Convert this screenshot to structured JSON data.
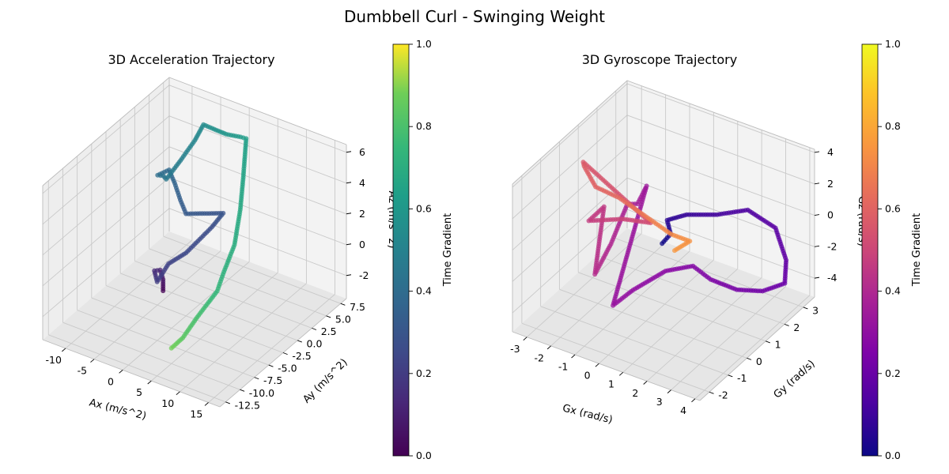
{
  "figure": {
    "title": "Dumbbell Curl - Swinging Weight"
  },
  "chart_data": [
    {
      "type": "scatter",
      "subtype": "3d-trajectory",
      "title": "3D Acceleration Trajectory",
      "xlabel": "Ax (m/s^2)",
      "ylabel": "Ay (m/s^2)",
      "zlabel": "Az (m/s^2)",
      "xlim": [
        -14,
        17
      ],
      "ylim": [
        -13.5,
        8.5
      ],
      "zlim": [
        -3.5,
        6.5
      ],
      "xticks": [
        -10,
        -5,
        0,
        5,
        10,
        15
      ],
      "yticks": [
        -12.5,
        -10.0,
        -7.5,
        -5.0,
        -2.5,
        0.0,
        2.5,
        5.0,
        7.5
      ],
      "zticks": [
        -2,
        0,
        2,
        4,
        6
      ],
      "colormap": "viridis",
      "colorbar": {
        "label": "Time Gradient",
        "ticks": [
          0.0,
          0.2,
          0.4,
          0.6,
          0.8,
          1.0
        ]
      },
      "points": [
        [
          -3.5,
          -3.0,
          -2.2,
          0.0
        ],
        [
          -2.5,
          -4.0,
          -1.0,
          0.06
        ],
        [
          -2.0,
          -5.0,
          0.0,
          0.1
        ],
        [
          -1.5,
          -6.5,
          0.5,
          0.12
        ],
        [
          1.5,
          -9.0,
          1.0,
          0.18
        ],
        [
          2.5,
          -8.0,
          2.0,
          0.2
        ],
        [
          2.0,
          -4.5,
          1.5,
          0.22
        ],
        [
          3.0,
          -1.0,
          2.2,
          0.24
        ],
        [
          3.5,
          0.5,
          2.7,
          0.26
        ],
        [
          -0.5,
          -2.0,
          2.9,
          0.28
        ],
        [
          -2.5,
          -1.0,
          3.2,
          0.3
        ],
        [
          -6.0,
          1.5,
          3.0,
          0.32
        ],
        [
          -9.0,
          3.5,
          2.8,
          0.34
        ],
        [
          -10.5,
          3.0,
          2.4,
          0.36
        ],
        [
          -11.0,
          4.5,
          1.8,
          0.38
        ],
        [
          -11.5,
          5.5,
          1.2,
          0.4
        ],
        [
          -8.5,
          5.0,
          3.0,
          0.43
        ],
        [
          -7.0,
          6.0,
          4.2,
          0.46
        ],
        [
          -6.0,
          6.5,
          5.2,
          0.48
        ],
        [
          -4.0,
          6.0,
          5.4,
          0.5
        ],
        [
          -1.0,
          5.5,
          5.6,
          0.52
        ],
        [
          2.0,
          5.0,
          6.0,
          0.54
        ],
        [
          4.0,
          4.0,
          6.5,
          0.56
        ],
        [
          7.0,
          0.5,
          5.5,
          0.58
        ],
        [
          9.0,
          -2.0,
          4.5,
          0.6
        ],
        [
          10.0,
          -4.0,
          3.0,
          0.62
        ],
        [
          9.5,
          -5.5,
          1.5,
          0.64
        ],
        [
          9.0,
          -6.0,
          0.5,
          0.66
        ],
        [
          7.0,
          -7.5,
          -1.0,
          0.7
        ],
        [
          6.0,
          -9.0,
          -2.0,
          0.74
        ],
        [
          5.0,
          -10.0,
          -2.5,
          0.78
        ]
      ]
    },
    {
      "type": "scatter",
      "subtype": "3d-trajectory",
      "title": "3D Gyroscope Trajectory",
      "xlabel": "Gx (rad/s)",
      "ylabel": "Gy (rad/s)",
      "zlabel": "Gz (rad/s)",
      "xlim": [
        -3.6,
        4.2
      ],
      "ylim": [
        -2.5,
        3.6
      ],
      "zlim": [
        -5.2,
        4.2
      ],
      "xticks": [
        -3,
        -2,
        -1,
        0,
        1,
        2,
        3,
        4
      ],
      "yticks": [
        -2,
        -1,
        0,
        1,
        2,
        3
      ],
      "zticks": [
        -4,
        -2,
        0,
        2,
        4
      ],
      "colormap": "plasma",
      "colorbar": {
        "label": "Time Gradient",
        "ticks": [
          0.0,
          0.2,
          0.4,
          0.6,
          0.8,
          1.0
        ]
      },
      "points": [
        [
          0.2,
          0.6,
          -0.8,
          0.0
        ],
        [
          0.4,
          0.8,
          -0.3,
          0.03
        ],
        [
          0.1,
          1.0,
          0.2,
          0.06
        ],
        [
          0.6,
          1.4,
          0.4,
          0.09
        ],
        [
          1.4,
          2.0,
          0.2,
          0.12
        ],
        [
          2.2,
          2.6,
          0.3,
          0.15
        ],
        [
          3.2,
          2.8,
          -0.5,
          0.18
        ],
        [
          3.8,
          2.6,
          -2.0,
          0.2
        ],
        [
          3.9,
          2.4,
          -3.2,
          0.22
        ],
        [
          3.6,
          1.6,
          -3.0,
          0.24
        ],
        [
          3.0,
          1.0,
          -2.6,
          0.26
        ],
        [
          2.3,
          0.5,
          -1.8,
          0.28
        ],
        [
          1.8,
          0.2,
          -0.9,
          0.3
        ],
        [
          1.2,
          -0.5,
          -0.8,
          0.32
        ],
        [
          0.4,
          -1.2,
          -1.7,
          0.34
        ],
        [
          -0.2,
          -1.5,
          -2.7,
          0.36
        ],
        [
          -0.6,
          0.8,
          2.2,
          0.38
        ],
        [
          -0.9,
          0.7,
          1.0,
          0.4
        ],
        [
          -1.4,
          0.8,
          0.6,
          0.42
        ],
        [
          -1.3,
          -0.2,
          -0.8,
          0.44
        ],
        [
          -1.5,
          -0.8,
          -2.2,
          0.46
        ],
        [
          -1.9,
          0.2,
          0.8,
          0.5
        ],
        [
          -2.3,
          -0.1,
          0.0,
          0.52
        ],
        [
          -1.2,
          0.3,
          0.3,
          0.55
        ],
        [
          -0.2,
          0.5,
          0.4,
          0.58
        ],
        [
          -3.0,
          0.5,
          2.7,
          0.62
        ],
        [
          -3.2,
          0.8,
          2.0,
          0.64
        ],
        [
          -2.8,
          0.9,
          0.8,
          0.66
        ],
        [
          -1.9,
          1.0,
          0.5,
          0.68
        ],
        [
          0.6,
          0.6,
          0.0,
          0.8
        ],
        [
          1.2,
          0.8,
          -0.3,
          0.82
        ],
        [
          0.8,
          0.5,
          -0.8,
          0.84
        ]
      ]
    }
  ]
}
